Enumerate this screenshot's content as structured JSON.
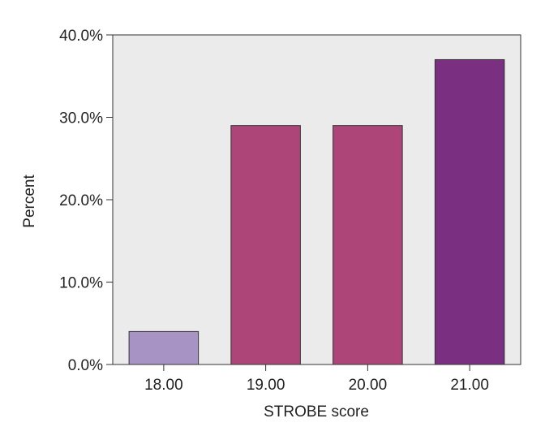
{
  "chart_data": {
    "type": "bar",
    "title": "",
    "xlabel": "STROBE score",
    "ylabel": "Percent",
    "categories": [
      "18.00",
      "19.00",
      "20.00",
      "21.00"
    ],
    "values": [
      4.0,
      29.0,
      29.0,
      37.0
    ],
    "bar_colors": [
      "#a793c4",
      "#ad4579",
      "#ad4579",
      "#7a2f80"
    ],
    "ylim": [
      0,
      40
    ],
    "yticks": [
      0,
      10,
      20,
      30,
      40
    ],
    "ytick_labels": [
      "0.0%",
      "10.0%",
      "20.0%",
      "30.0%",
      "40.0%"
    ],
    "grid": false,
    "legend": "none",
    "plot_background": "#ebebeb",
    "axis_color": "#333333"
  }
}
